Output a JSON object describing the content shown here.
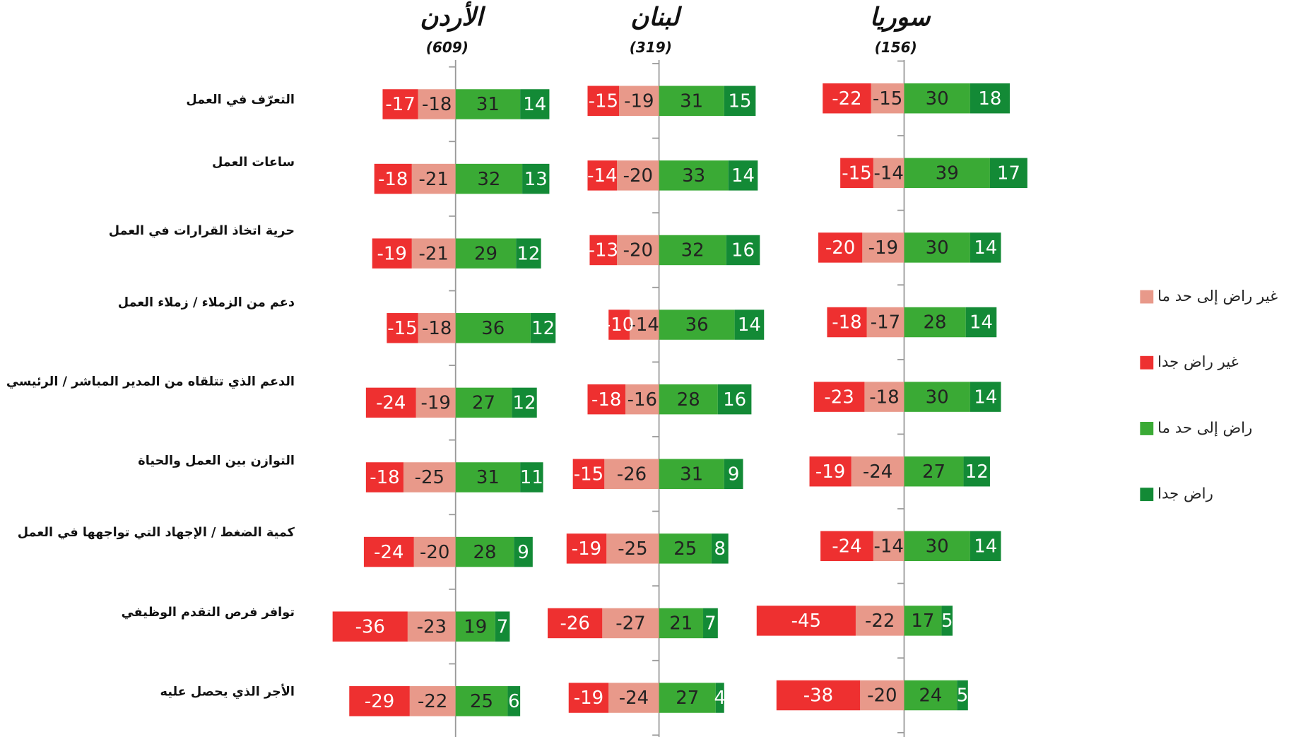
{
  "chart_data": {
    "type": "bar",
    "categories": [
      "التعرّف في العمل",
      "ساعات العمل",
      "حرية اتخاذ القرارات في العمل",
      "دعم من الزملاء / زملاء العمل",
      "الدعم الذي تتلقاه من المدير المباشر / الرئيسي",
      "التوازن بين العمل والحياة",
      "كمية الضغط / الإجهاد التي تواجهها في العمل",
      "توافر فرص التقدم الوظيفي",
      "الأجر الذي يحصل عليه"
    ],
    "series": [
      {
        "name": "غير راض إلى حد ما",
        "color": "#e8998a"
      },
      {
        "name": "غير راض جدا",
        "color": "#ee3030"
      },
      {
        "name": "راض إلى حد ما",
        "color": "#3aaa35"
      },
      {
        "name": "راض جدا",
        "color": "#138a36"
      }
    ],
    "panels": [
      {
        "title": "الأردن",
        "subtitle": "(609)",
        "series": [
          {
            "values": [
              -18,
              -21,
              -21,
              -18,
              -19,
              -25,
              -20,
              -23,
              -22
            ]
          },
          {
            "values": [
              -17,
              -18,
              -19,
              -15,
              -24,
              -18,
              -24,
              -36,
              -29
            ]
          },
          {
            "values": [
              31,
              32,
              29,
              36,
              27,
              31,
              28,
              19,
              25
            ]
          },
          {
            "values": [
              14,
              13,
              12,
              12,
              12,
              11,
              9,
              7,
              6
            ]
          }
        ]
      },
      {
        "title": "لبنان",
        "subtitle": "(319)",
        "series": [
          {
            "values": [
              -19,
              -20,
              -20,
              -14,
              -16,
              -26,
              -25,
              -27,
              -24
            ]
          },
          {
            "values": [
              -15,
              -14,
              -13,
              -10,
              -18,
              -15,
              -19,
              -26,
              -19
            ]
          },
          {
            "values": [
              31,
              33,
              32,
              36,
              28,
              31,
              25,
              21,
              27
            ]
          },
          {
            "values": [
              15,
              14,
              16,
              14,
              16,
              9,
              8,
              7,
              4
            ]
          }
        ]
      },
      {
        "title": "سوريا",
        "subtitle": "(156)",
        "series": [
          {
            "values": [
              -15,
              -14,
              -19,
              -17,
              -18,
              -24,
              -14,
              -22,
              -20
            ]
          },
          {
            "values": [
              -22,
              -15,
              -20,
              -18,
              -23,
              -19,
              -24,
              -45,
              -38
            ]
          },
          {
            "values": [
              30,
              39,
              30,
              28,
              30,
              27,
              30,
              17,
              24
            ]
          },
          {
            "values": [
              18,
              17,
              14,
              14,
              14,
              12,
              14,
              5,
              5
            ]
          }
        ]
      }
    ]
  }
}
